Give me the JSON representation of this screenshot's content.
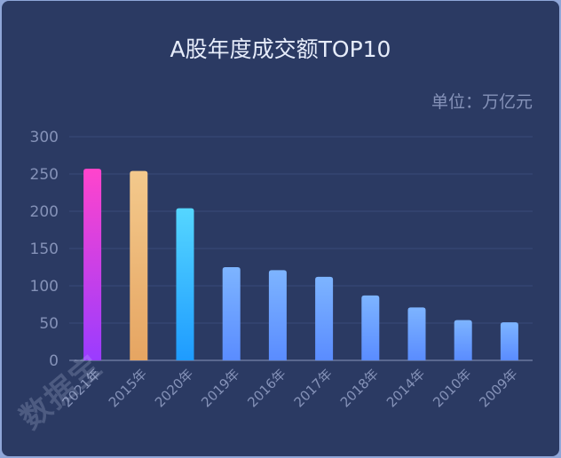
{
  "chart_data": {
    "type": "bar",
    "title": "A股年度成交额TOP10",
    "unit_label": "单位：万亿元",
    "categories": [
      "2021年",
      "2015年",
      "2020年",
      "2019年",
      "2016年",
      "2017年",
      "2018年",
      "2014年",
      "2010年",
      "2009年"
    ],
    "values": [
      257,
      254,
      204,
      125,
      121,
      112,
      87,
      71,
      54,
      51
    ],
    "ylim": [
      0,
      300
    ],
    "yticks": [
      0,
      50,
      100,
      150,
      200,
      250,
      300
    ],
    "grid": true,
    "colors": [
      [
        "#ff44cc",
        "#9a3cff"
      ],
      [
        "#f3c98c",
        "#e6a562"
      ],
      [
        "#55d6ff",
        "#1e9bff"
      ],
      [
        "#7db4ff",
        "#5a8cff"
      ]
    ]
  },
  "watermark": "数据宝"
}
